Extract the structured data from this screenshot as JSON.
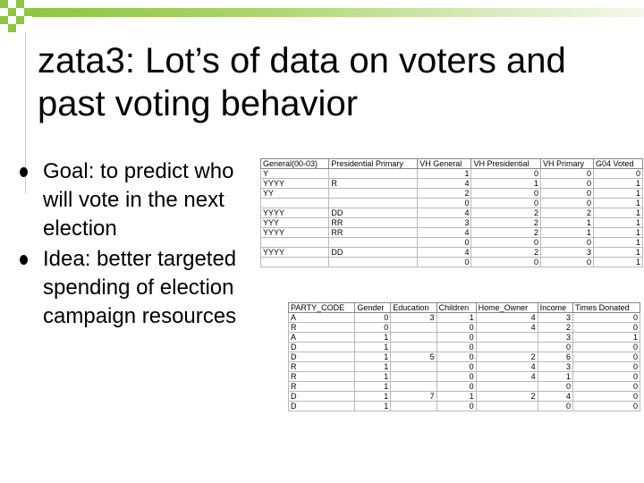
{
  "slide": {
    "title": "zata3: Lot’s of data on voters and past voting behavior",
    "bullets": [
      "Goal: to predict who will vote in the next election",
      "Idea: better targeted spending of election campaign resources"
    ]
  },
  "table1": {
    "headers": [
      "General(00-03)",
      "Presidential Primary",
      "VH General",
      "VH Presidential",
      "VH Primary",
      "G04 Voted"
    ],
    "rows": [
      [
        "Y",
        "",
        "1",
        "0",
        "0",
        "0"
      ],
      [
        "YYYY",
        "R",
        "4",
        "1",
        "0",
        "1"
      ],
      [
        "YY",
        "",
        "2",
        "0",
        "0",
        "1"
      ],
      [
        "",
        "",
        "0",
        "0",
        "0",
        "1"
      ],
      [
        "YYYY",
        "DD",
        "4",
        "2",
        "2",
        "1"
      ],
      [
        "YYY",
        "RR",
        "3",
        "2",
        "1",
        "1"
      ],
      [
        "YYYY",
        "RR",
        "4",
        "2",
        "1",
        "1"
      ],
      [
        "",
        "",
        "0",
        "0",
        "0",
        "1"
      ],
      [
        "YYYY",
        "DD",
        "4",
        "2",
        "3",
        "1"
      ],
      [
        "",
        "",
        "0",
        "0",
        "0",
        "1"
      ]
    ]
  },
  "table2": {
    "headers": [
      "PARTY_CODE",
      "Gender",
      "Education",
      "Children",
      "Home_Owner",
      "Income",
      "Times Donated"
    ],
    "rows": [
      [
        "A",
        "0",
        "3",
        "1",
        "4",
        "3",
        "0"
      ],
      [
        "R",
        "0",
        "",
        "0",
        "4",
        "2",
        "0"
      ],
      [
        "A",
        "1",
        "",
        "0",
        "",
        "3",
        "1"
      ],
      [
        "D",
        "1",
        "",
        "0",
        "",
        "0",
        "0"
      ],
      [
        "D",
        "1",
        "5",
        "0",
        "2",
        "6",
        "0"
      ],
      [
        "R",
        "1",
        "",
        "0",
        "4",
        "3",
        "0"
      ],
      [
        "R",
        "1",
        "",
        "0",
        "4",
        "1",
        "0"
      ],
      [
        "R",
        "1",
        "",
        "0",
        "",
        "0",
        "0"
      ],
      [
        "D",
        "1",
        "7",
        "1",
        "2",
        "4",
        "0"
      ],
      [
        "D",
        "1",
        "",
        "0",
        "",
        "0",
        "0"
      ]
    ]
  },
  "colors": {
    "accent": "#8dc63f",
    "text": "#000000",
    "background": "#ffffff"
  }
}
